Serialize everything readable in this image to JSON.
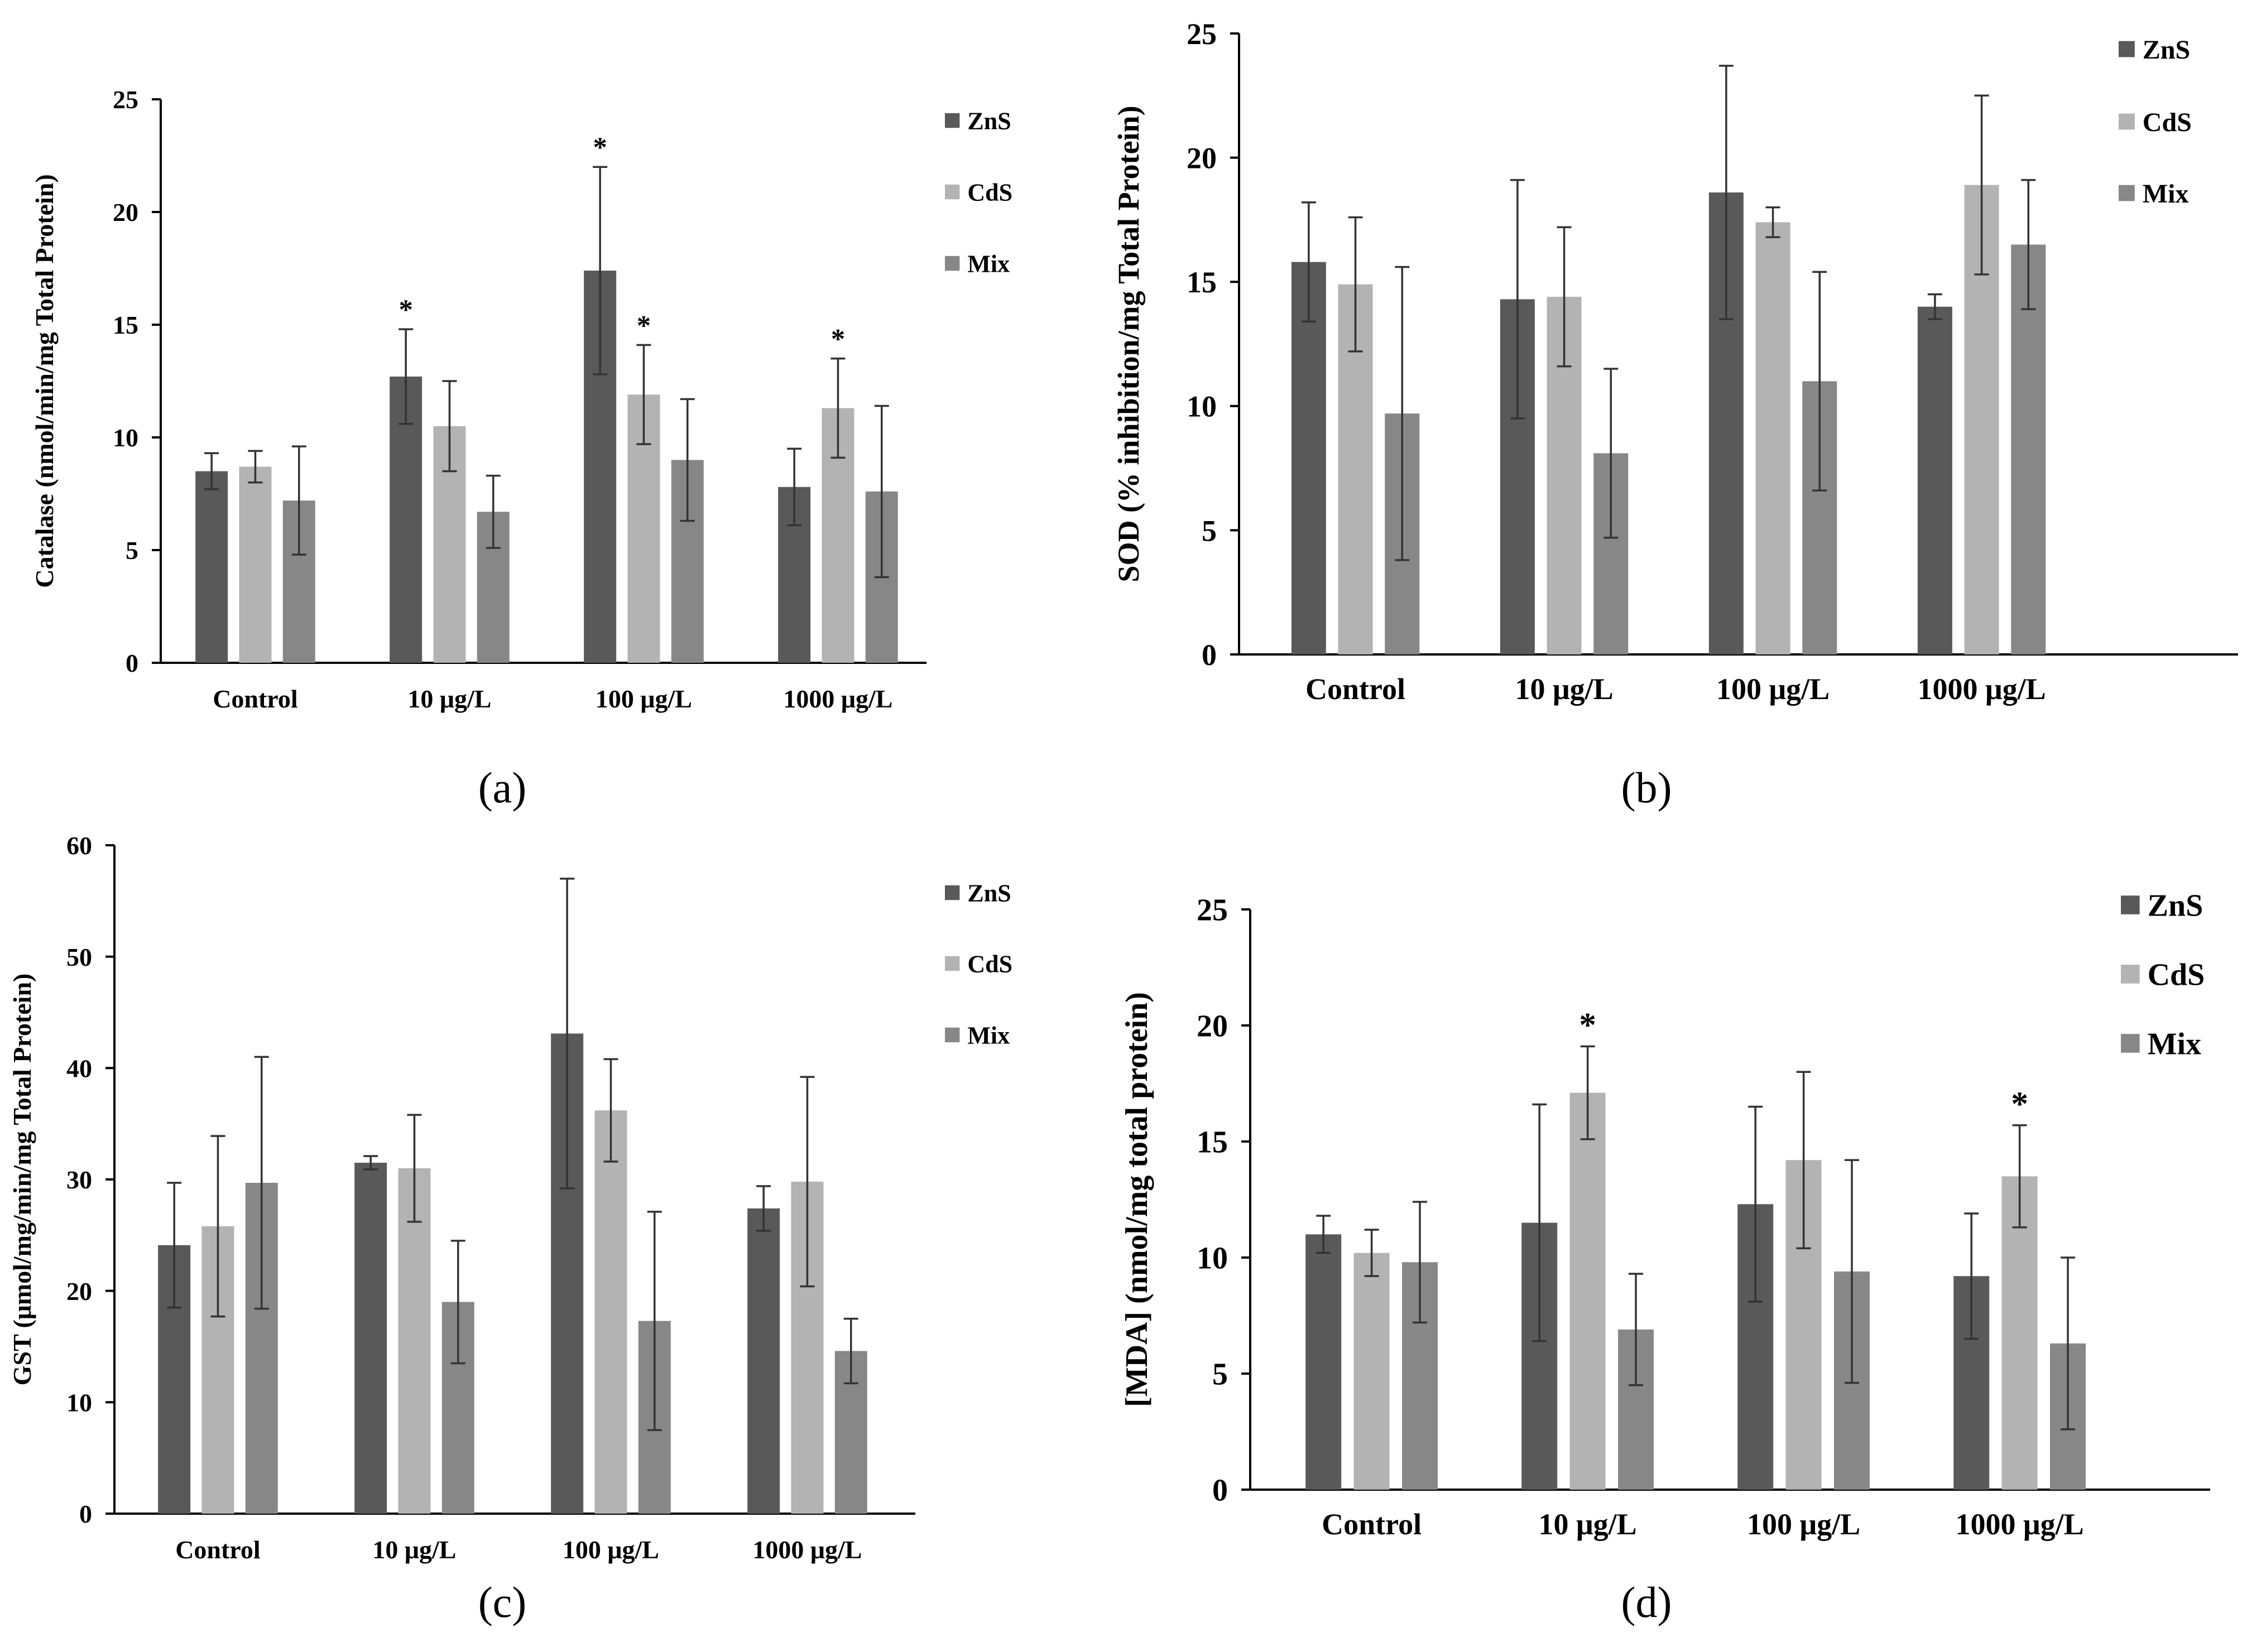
{
  "colors": {
    "ZnS": "#595959",
    "CdS": "#b3b3b3",
    "Mix": "#878787"
  },
  "panels": [
    {
      "label": "(a)",
      "chart_data": {
        "type": "bar",
        "title": "",
        "xlabel": "",
        "ylabel": "Catalase (nmol/min/mg Total Protein)",
        "ylim": [
          0,
          25
        ],
        "yticks": [
          0,
          5,
          10,
          15,
          20,
          25
        ],
        "categories": [
          "Control",
          "10 μg/L",
          "100 μg/L",
          "1000 μg/L"
        ],
        "legend_position": "top-right",
        "series": [
          {
            "name": "ZnS",
            "values": [
              8.5,
              12.7,
              17.4,
              7.8
            ],
            "errors": [
              0.8,
              2.1,
              4.6,
              1.7
            ],
            "stars": [
              false,
              true,
              true,
              false
            ]
          },
          {
            "name": "CdS",
            "values": [
              8.7,
              10.5,
              11.9,
              11.3
            ],
            "errors": [
              0.7,
              2.0,
              2.2,
              2.2
            ],
            "stars": [
              false,
              false,
              true,
              true
            ]
          },
          {
            "name": "Mix",
            "values": [
              7.2,
              6.7,
              9.0,
              7.6
            ],
            "errors": [
              2.4,
              1.6,
              2.7,
              3.8
            ],
            "stars": [
              false,
              false,
              false,
              false
            ]
          }
        ]
      }
    },
    {
      "label": "(b)",
      "chart_data": {
        "type": "bar",
        "title": "",
        "xlabel": "",
        "ylabel": "SOD (% inhibition/mg Total Protein)",
        "ylim": [
          0,
          25
        ],
        "yticks": [
          0,
          5,
          10,
          15,
          20,
          25
        ],
        "categories": [
          "Control",
          "10 μg/L",
          "100 μg/L",
          "1000 μg/L"
        ],
        "legend_position": "top-right",
        "series": [
          {
            "name": "ZnS",
            "values": [
              15.8,
              14.3,
              18.6,
              14.0
            ],
            "errors": [
              2.4,
              4.8,
              5.1,
              0.5
            ],
            "stars": [
              false,
              false,
              false,
              false
            ]
          },
          {
            "name": "CdS",
            "values": [
              14.9,
              14.4,
              17.4,
              18.9
            ],
            "errors": [
              2.7,
              2.8,
              0.6,
              3.6
            ],
            "stars": [
              false,
              false,
              false,
              false
            ]
          },
          {
            "name": "Mix",
            "values": [
              9.7,
              8.1,
              11.0,
              16.5
            ],
            "errors": [
              5.9,
              3.4,
              4.4,
              2.6
            ],
            "stars": [
              false,
              false,
              false,
              false
            ]
          }
        ]
      }
    },
    {
      "label": "(c)",
      "chart_data": {
        "type": "bar",
        "title": "",
        "xlabel": "",
        "ylabel": "GST (μmol/mg/min/mg Total Protein)",
        "ylim": [
          0,
          60
        ],
        "yticks": [
          0,
          10,
          20,
          30,
          40,
          50,
          60
        ],
        "categories": [
          "Control",
          "10 μg/L",
          "100 μg/L",
          "1000 μg/L"
        ],
        "legend_position": "top-right",
        "series": [
          {
            "name": "ZnS",
            "values": [
              24.1,
              31.5,
              43.1,
              27.4
            ],
            "errors": [
              5.6,
              0.6,
              13.9,
              2.0
            ],
            "stars": [
              false,
              false,
              false,
              false
            ]
          },
          {
            "name": "CdS",
            "values": [
              25.8,
              31.0,
              36.2,
              29.8
            ],
            "errors": [
              8.1,
              4.8,
              4.6,
              9.4
            ],
            "stars": [
              false,
              false,
              false,
              false
            ]
          },
          {
            "name": "Mix",
            "values": [
              29.7,
              19.0,
              17.3,
              14.6
            ],
            "errors": [
              11.3,
              5.5,
              9.8,
              2.9
            ],
            "stars": [
              false,
              false,
              false,
              false
            ]
          }
        ]
      }
    },
    {
      "label": "(d)",
      "chart_data": {
        "type": "bar",
        "title": "",
        "xlabel": "",
        "ylabel": "[MDA] (nmol/mg total protein)",
        "ylim": [
          0,
          25
        ],
        "yticks": [
          0,
          5,
          10,
          15,
          20,
          25
        ],
        "categories": [
          "Control",
          "10 μg/L",
          "100 μg/L",
          "1000 μg/L"
        ],
        "legend_position": "top-right",
        "series": [
          {
            "name": "ZnS",
            "values": [
              11.0,
              11.5,
              12.3,
              9.2
            ],
            "errors": [
              0.8,
              5.1,
              4.2,
              2.7
            ],
            "stars": [
              false,
              false,
              false,
              false
            ]
          },
          {
            "name": "CdS",
            "values": [
              10.2,
              17.1,
              14.2,
              13.5
            ],
            "errors": [
              1.0,
              2.0,
              3.8,
              2.2
            ],
            "stars": [
              false,
              true,
              false,
              true
            ]
          },
          {
            "name": "Mix",
            "values": [
              9.8,
              6.9,
              9.4,
              6.3
            ],
            "errors": [
              2.6,
              2.4,
              4.8,
              3.7
            ],
            "stars": [
              false,
              false,
              false,
              false
            ]
          }
        ]
      }
    }
  ]
}
